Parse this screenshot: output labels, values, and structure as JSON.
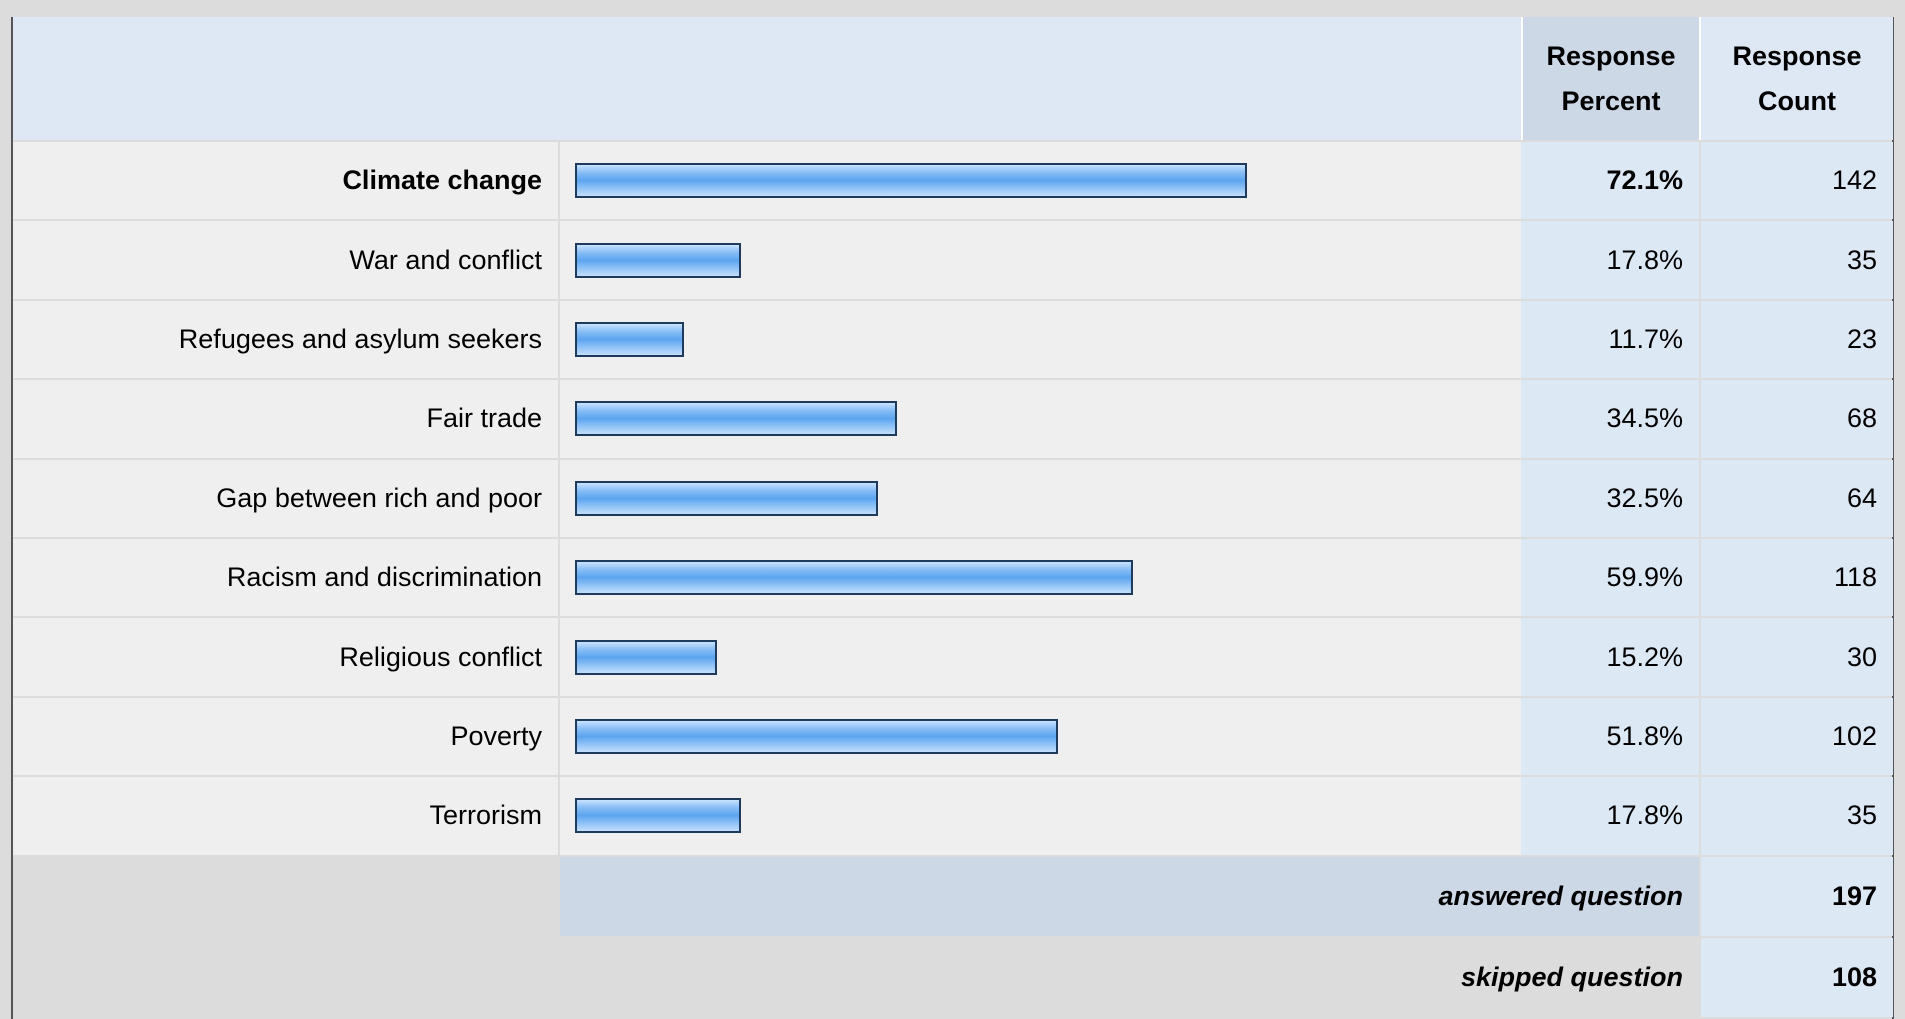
{
  "table": {
    "header": {
      "percent": "Response Percent",
      "count": "Response Count"
    },
    "bar_range": [
      0,
      100
    ],
    "rows": [
      {
        "label": "Climate change",
        "percent": 72.1,
        "percent_label": "72.1%",
        "count": 142
      },
      {
        "label": "War and conflict",
        "percent": 17.8,
        "percent_label": "17.8%",
        "count": 35
      },
      {
        "label": "Refugees and asylum seekers",
        "percent": 11.7,
        "percent_label": "11.7%",
        "count": 23
      },
      {
        "label": "Fair trade",
        "percent": 34.5,
        "percent_label": "34.5%",
        "count": 68
      },
      {
        "label": "Gap between rich and poor",
        "percent": 32.5,
        "percent_label": "32.5%",
        "count": 64
      },
      {
        "label": "Racism and discrimination",
        "percent": 59.9,
        "percent_label": "59.9%",
        "count": 118
      },
      {
        "label": "Religious conflict",
        "percent": 15.2,
        "percent_label": "15.2%",
        "count": 30
      },
      {
        "label": "Poverty",
        "percent": 51.8,
        "percent_label": "51.8%",
        "count": 102
      },
      {
        "label": "Terrorism",
        "percent": 17.8,
        "percent_label": "17.8%",
        "count": 35
      }
    ],
    "footer": [
      {
        "label": "answered question",
        "count": 197
      },
      {
        "label": "skipped question",
        "count": 108
      }
    ]
  }
}
